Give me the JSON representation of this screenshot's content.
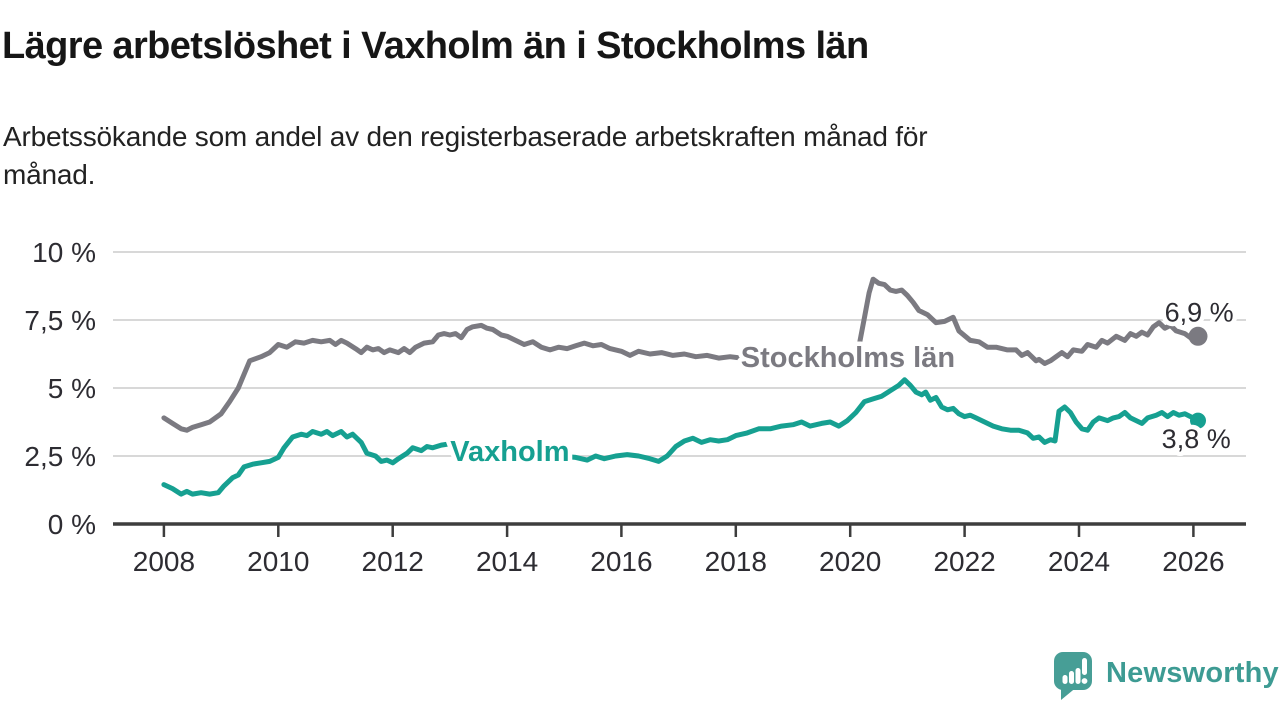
{
  "page": {
    "subtitle_lines": [
      "Arbetssökande som andel av den registerbaserade arbetskraften månad för",
      "månad."
    ]
  },
  "branding": {
    "name": "Newsworthy",
    "icon": "speech-bubble-bar-chart-icon",
    "icon_color": "#479e96",
    "text_color": "#3d9b93"
  },
  "chart_data": {
    "type": "line",
    "title": "Lägre arbetslöshet i Vaxholm än i Stockholms län",
    "xlabel": "",
    "ylabel": "",
    "unit": "%",
    "grid": true,
    "ylim": [
      0,
      10
    ],
    "xlim": [
      2007.11,
      2026.92
    ],
    "y_ticks": [
      {
        "value": 10,
        "label": "10 %"
      },
      {
        "value": 7.5,
        "label": "7,5 %"
      },
      {
        "value": 5,
        "label": "5 %"
      },
      {
        "value": 2.5,
        "label": "2,5 %"
      },
      {
        "value": 0,
        "label": "0 %"
      }
    ],
    "x_ticks": [
      {
        "value": 2008,
        "label": "2008"
      },
      {
        "value": 2010,
        "label": "2010"
      },
      {
        "value": 2012,
        "label": "2012"
      },
      {
        "value": 2014,
        "label": "2014"
      },
      {
        "value": 2016,
        "label": "2016"
      },
      {
        "value": 2018,
        "label": "2018"
      },
      {
        "value": 2020,
        "label": "2020"
      },
      {
        "value": 2022,
        "label": "2022"
      },
      {
        "value": 2024,
        "label": "2024"
      },
      {
        "value": 2026,
        "label": "2026"
      }
    ],
    "series": [
      {
        "id": "stockholms-lan",
        "name": "Stockholms län",
        "color": "#7b7a81",
        "latest_value": 6.9,
        "inline_label": {
          "text": "Stockholms län",
          "x": 2019.96,
          "y": 5.78
        },
        "end_label": {
          "text": "6,9 %",
          "x": 2026.1,
          "y": 7.45
        },
        "end_dot_radius": 9.5,
        "points": [
          [
            2008.0,
            3.9
          ],
          [
            2008.15,
            3.7
          ],
          [
            2008.3,
            3.5
          ],
          [
            2008.4,
            3.45
          ],
          [
            2008.5,
            3.55
          ],
          [
            2008.65,
            3.65
          ],
          [
            2008.8,
            3.75
          ],
          [
            2009.0,
            4.05
          ],
          [
            2009.15,
            4.5
          ],
          [
            2009.3,
            5.0
          ],
          [
            2009.5,
            6.0
          ],
          [
            2009.7,
            6.15
          ],
          [
            2009.85,
            6.3
          ],
          [
            2010.0,
            6.6
          ],
          [
            2010.15,
            6.5
          ],
          [
            2010.3,
            6.7
          ],
          [
            2010.45,
            6.65
          ],
          [
            2010.6,
            6.75
          ],
          [
            2010.75,
            6.7
          ],
          [
            2010.9,
            6.75
          ],
          [
            2011.0,
            6.6
          ],
          [
            2011.1,
            6.75
          ],
          [
            2011.2,
            6.65
          ],
          [
            2011.35,
            6.45
          ],
          [
            2011.45,
            6.3
          ],
          [
            2011.55,
            6.5
          ],
          [
            2011.65,
            6.4
          ],
          [
            2011.75,
            6.45
          ],
          [
            2011.85,
            6.3
          ],
          [
            2011.95,
            6.4
          ],
          [
            2012.1,
            6.3
          ],
          [
            2012.2,
            6.45
          ],
          [
            2012.3,
            6.3
          ],
          [
            2012.4,
            6.5
          ],
          [
            2012.55,
            6.65
          ],
          [
            2012.7,
            6.7
          ],
          [
            2012.8,
            6.95
          ],
          [
            2012.9,
            7.0
          ],
          [
            2013.0,
            6.95
          ],
          [
            2013.1,
            7.0
          ],
          [
            2013.2,
            6.85
          ],
          [
            2013.3,
            7.15
          ],
          [
            2013.4,
            7.25
          ],
          [
            2013.55,
            7.3
          ],
          [
            2013.65,
            7.2
          ],
          [
            2013.75,
            7.15
          ],
          [
            2013.9,
            6.95
          ],
          [
            2014.0,
            6.9
          ],
          [
            2014.15,
            6.75
          ],
          [
            2014.3,
            6.6
          ],
          [
            2014.45,
            6.7
          ],
          [
            2014.6,
            6.5
          ],
          [
            2014.75,
            6.4
          ],
          [
            2014.9,
            6.5
          ],
          [
            2015.05,
            6.45
          ],
          [
            2015.2,
            6.55
          ],
          [
            2015.35,
            6.65
          ],
          [
            2015.5,
            6.55
          ],
          [
            2015.65,
            6.6
          ],
          [
            2015.8,
            6.45
          ],
          [
            2016.0,
            6.35
          ],
          [
            2016.15,
            6.2
          ],
          [
            2016.3,
            6.35
          ],
          [
            2016.5,
            6.25
          ],
          [
            2016.7,
            6.3
          ],
          [
            2016.9,
            6.2
          ],
          [
            2017.1,
            6.25
          ],
          [
            2017.3,
            6.15
          ],
          [
            2017.5,
            6.2
          ],
          [
            2017.7,
            6.1
          ],
          [
            2017.9,
            6.15
          ],
          [
            2018.1,
            6.1
          ],
          [
            2018.3,
            6.15
          ],
          [
            2018.5,
            6.1
          ],
          [
            2018.7,
            6.15
          ],
          [
            2018.9,
            6.05
          ],
          [
            2019.1,
            6.1
          ],
          [
            2019.3,
            6.05
          ],
          [
            2019.5,
            6.1
          ],
          [
            2019.7,
            6.05
          ],
          [
            2019.9,
            6.0
          ],
          [
            2020.05,
            6.1
          ],
          [
            2020.15,
            6.5
          ],
          [
            2020.25,
            7.6
          ],
          [
            2020.33,
            8.5
          ],
          [
            2020.4,
            9.0
          ],
          [
            2020.5,
            8.85
          ],
          [
            2020.6,
            8.8
          ],
          [
            2020.7,
            8.6
          ],
          [
            2020.8,
            8.55
          ],
          [
            2020.9,
            8.6
          ],
          [
            2021.0,
            8.4
          ],
          [
            2021.1,
            8.15
          ],
          [
            2021.2,
            7.85
          ],
          [
            2021.35,
            7.7
          ],
          [
            2021.5,
            7.4
          ],
          [
            2021.65,
            7.45
          ],
          [
            2021.8,
            7.6
          ],
          [
            2021.9,
            7.1
          ],
          [
            2022.1,
            6.75
          ],
          [
            2022.25,
            6.7
          ],
          [
            2022.4,
            6.5
          ],
          [
            2022.55,
            6.5
          ],
          [
            2022.75,
            6.4
          ],
          [
            2022.9,
            6.4
          ],
          [
            2023.0,
            6.2
          ],
          [
            2023.1,
            6.3
          ],
          [
            2023.25,
            6.0
          ],
          [
            2023.3,
            6.05
          ],
          [
            2023.4,
            5.9
          ],
          [
            2023.5,
            6.0
          ],
          [
            2023.6,
            6.15
          ],
          [
            2023.7,
            6.3
          ],
          [
            2023.8,
            6.15
          ],
          [
            2023.9,
            6.4
          ],
          [
            2024.05,
            6.35
          ],
          [
            2024.15,
            6.6
          ],
          [
            2024.3,
            6.5
          ],
          [
            2024.4,
            6.75
          ],
          [
            2024.5,
            6.65
          ],
          [
            2024.65,
            6.9
          ],
          [
            2024.8,
            6.75
          ],
          [
            2024.9,
            7.0
          ],
          [
            2025.0,
            6.9
          ],
          [
            2025.1,
            7.05
          ],
          [
            2025.2,
            6.95
          ],
          [
            2025.3,
            7.25
          ],
          [
            2025.4,
            7.4
          ],
          [
            2025.5,
            7.2
          ],
          [
            2025.6,
            7.3
          ],
          [
            2025.7,
            7.1
          ],
          [
            2025.85,
            7.0
          ],
          [
            2025.95,
            6.85
          ],
          [
            2026.08,
            6.9
          ]
        ]
      },
      {
        "id": "vaxholm",
        "name": "Vaxholm",
        "color": "#16a091",
        "latest_value": 3.8,
        "inline_label": {
          "text": "Vaxholm",
          "x": 2014.05,
          "y": 2.32
        },
        "end_label": {
          "text": "3,8 %",
          "x": 2026.05,
          "y": 2.79
        },
        "end_dot_radius": 8,
        "points": [
          [
            2008.0,
            1.45
          ],
          [
            2008.15,
            1.3
          ],
          [
            2008.3,
            1.1
          ],
          [
            2008.4,
            1.2
          ],
          [
            2008.5,
            1.1
          ],
          [
            2008.65,
            1.15
          ],
          [
            2008.8,
            1.1
          ],
          [
            2008.95,
            1.15
          ],
          [
            2009.05,
            1.4
          ],
          [
            2009.2,
            1.7
          ],
          [
            2009.3,
            1.8
          ],
          [
            2009.4,
            2.1
          ],
          [
            2009.55,
            2.2
          ],
          [
            2009.7,
            2.25
          ],
          [
            2009.85,
            2.3
          ],
          [
            2010.0,
            2.45
          ],
          [
            2010.1,
            2.8
          ],
          [
            2010.25,
            3.2
          ],
          [
            2010.4,
            3.3
          ],
          [
            2010.5,
            3.25
          ],
          [
            2010.6,
            3.4
          ],
          [
            2010.75,
            3.3
          ],
          [
            2010.85,
            3.4
          ],
          [
            2010.95,
            3.25
          ],
          [
            2011.1,
            3.4
          ],
          [
            2011.2,
            3.2
          ],
          [
            2011.3,
            3.3
          ],
          [
            2011.45,
            3.0
          ],
          [
            2011.55,
            2.6
          ],
          [
            2011.7,
            2.5
          ],
          [
            2011.8,
            2.3
          ],
          [
            2011.9,
            2.35
          ],
          [
            2012.0,
            2.25
          ],
          [
            2012.1,
            2.4
          ],
          [
            2012.25,
            2.6
          ],
          [
            2012.35,
            2.8
          ],
          [
            2012.5,
            2.7
          ],
          [
            2012.6,
            2.85
          ],
          [
            2012.7,
            2.8
          ],
          [
            2012.85,
            2.9
          ],
          [
            2013.0,
            2.95
          ],
          [
            2013.2,
            2.85
          ],
          [
            2013.4,
            2.9
          ],
          [
            2013.6,
            2.8
          ],
          [
            2013.8,
            2.75
          ],
          [
            2014.0,
            2.7
          ],
          [
            2014.3,
            2.65
          ],
          [
            2014.6,
            2.55
          ],
          [
            2014.9,
            2.5
          ],
          [
            2015.2,
            2.45
          ],
          [
            2015.4,
            2.35
          ],
          [
            2015.55,
            2.5
          ],
          [
            2015.7,
            2.4
          ],
          [
            2015.9,
            2.5
          ],
          [
            2016.1,
            2.55
          ],
          [
            2016.3,
            2.5
          ],
          [
            2016.5,
            2.4
          ],
          [
            2016.65,
            2.3
          ],
          [
            2016.8,
            2.5
          ],
          [
            2016.95,
            2.85
          ],
          [
            2017.1,
            3.05
          ],
          [
            2017.25,
            3.15
          ],
          [
            2017.4,
            3.0
          ],
          [
            2017.55,
            3.1
          ],
          [
            2017.7,
            3.05
          ],
          [
            2017.85,
            3.1
          ],
          [
            2018.0,
            3.25
          ],
          [
            2018.2,
            3.35
          ],
          [
            2018.4,
            3.5
          ],
          [
            2018.6,
            3.5
          ],
          [
            2018.8,
            3.6
          ],
          [
            2019.0,
            3.65
          ],
          [
            2019.15,
            3.75
          ],
          [
            2019.3,
            3.6
          ],
          [
            2019.5,
            3.7
          ],
          [
            2019.65,
            3.75
          ],
          [
            2019.8,
            3.6
          ],
          [
            2019.95,
            3.8
          ],
          [
            2020.1,
            4.1
          ],
          [
            2020.25,
            4.5
          ],
          [
            2020.4,
            4.6
          ],
          [
            2020.55,
            4.7
          ],
          [
            2020.7,
            4.9
          ],
          [
            2020.85,
            5.1
          ],
          [
            2020.95,
            5.3
          ],
          [
            2021.05,
            5.1
          ],
          [
            2021.15,
            4.85
          ],
          [
            2021.25,
            4.75
          ],
          [
            2021.32,
            4.85
          ],
          [
            2021.4,
            4.55
          ],
          [
            2021.5,
            4.65
          ],
          [
            2021.6,
            4.3
          ],
          [
            2021.7,
            4.2
          ],
          [
            2021.8,
            4.25
          ],
          [
            2021.9,
            4.05
          ],
          [
            2022.0,
            3.95
          ],
          [
            2022.1,
            4.0
          ],
          [
            2022.2,
            3.9
          ],
          [
            2022.35,
            3.75
          ],
          [
            2022.5,
            3.6
          ],
          [
            2022.65,
            3.5
          ],
          [
            2022.8,
            3.45
          ],
          [
            2022.95,
            3.45
          ],
          [
            2023.1,
            3.35
          ],
          [
            2023.2,
            3.15
          ],
          [
            2023.3,
            3.2
          ],
          [
            2023.4,
            3.0
          ],
          [
            2023.5,
            3.1
          ],
          [
            2023.58,
            3.05
          ],
          [
            2023.65,
            4.15
          ],
          [
            2023.75,
            4.3
          ],
          [
            2023.85,
            4.1
          ],
          [
            2023.95,
            3.75
          ],
          [
            2024.05,
            3.5
          ],
          [
            2024.15,
            3.45
          ],
          [
            2024.25,
            3.75
          ],
          [
            2024.35,
            3.9
          ],
          [
            2024.5,
            3.8
          ],
          [
            2024.6,
            3.9
          ],
          [
            2024.7,
            3.95
          ],
          [
            2024.8,
            4.1
          ],
          [
            2024.9,
            3.9
          ],
          [
            2025.0,
            3.8
          ],
          [
            2025.1,
            3.7
          ],
          [
            2025.2,
            3.9
          ],
          [
            2025.35,
            4.0
          ],
          [
            2025.45,
            4.1
          ],
          [
            2025.55,
            3.95
          ],
          [
            2025.65,
            4.1
          ],
          [
            2025.75,
            4.0
          ],
          [
            2025.85,
            4.05
          ],
          [
            2025.95,
            3.95
          ],
          [
            2026.08,
            3.8
          ]
        ]
      }
    ]
  }
}
